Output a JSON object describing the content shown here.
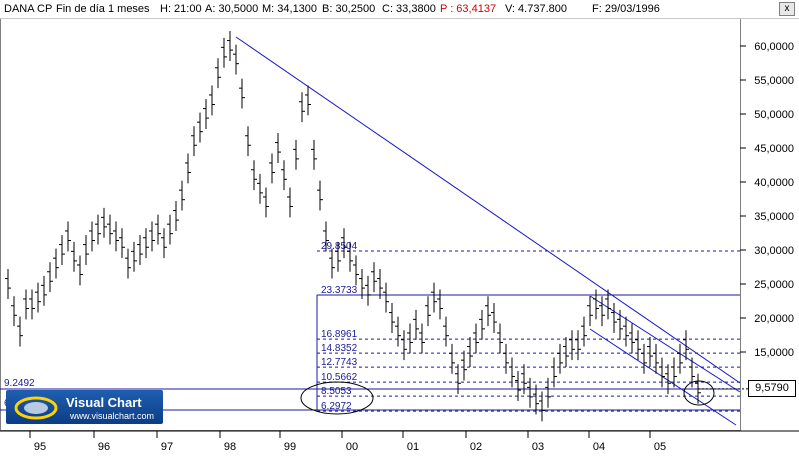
{
  "header": {
    "symbol": "DANA CP",
    "period": "Fin de día 1 meses",
    "h": "H: 21:00",
    "a": "A: 30,5000",
    "m": "M: 34,1300",
    "b": "B: 30,2500",
    "c": "C: 33,3800",
    "p": "P : 63,4137",
    "v": "V: 4.737.800",
    "f": "F: 29/03/1996",
    "close_glyph": "x"
  },
  "price_tag": "9,5790",
  "left_level_label": "9.2492",
  "left_stub": "6",
  "logo": {
    "title": "Visual Chart",
    "url": "www.visualchart.com"
  },
  "fib_levels": [
    "29.8504",
    "23.3733",
    "16.8961",
    "14.8352",
    "12.7743",
    "10.5662",
    "8.5053",
    "6.2972"
  ],
  "colors": {
    "trendline": "#1a1acc",
    "bars": "#000000",
    "fib": "#1a1a9c"
  },
  "chart_data": {
    "type": "ohlc",
    "xlabels": [
      "95",
      "96",
      "97",
      "98",
      "99",
      "00",
      "01",
      "02",
      "03",
      "04",
      "05"
    ],
    "ylabels": [
      "60,0000",
      "55,0000",
      "50,0000",
      "45,0000",
      "40,0000",
      "35,0000",
      "30,0000",
      "25,0000",
      "20,0000",
      "15,0000"
    ],
    "ylim": [
      5,
      62
    ],
    "yticks": [
      60,
      55,
      50,
      45,
      40,
      35,
      30,
      25,
      20,
      15
    ],
    "fib_values": [
      29.8504,
      23.3733,
      16.8961,
      14.8352,
      12.7743,
      10.5662,
      8.5053,
      6.2972
    ],
    "last_price": 9.579
  }
}
